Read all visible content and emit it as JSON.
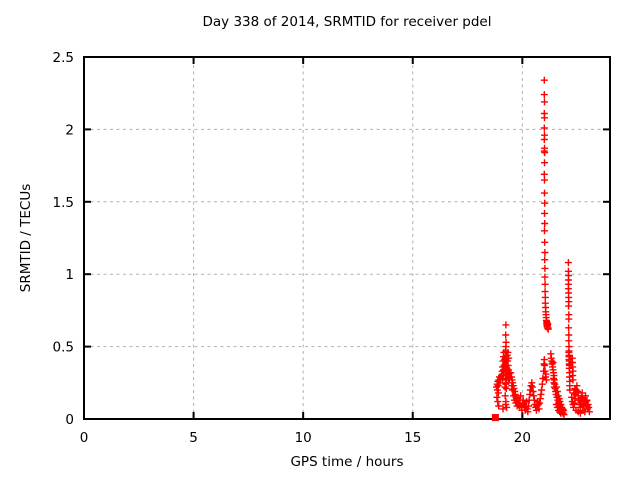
{
  "chart_data": {
    "type": "scatter",
    "title": "Day 338 of 2014, SRMTID for receiver pdel",
    "xlabel": "GPS time / hours",
    "ylabel": "SRMTID / TECUs",
    "xlim": [
      0,
      24
    ],
    "ylim": [
      0,
      2.5
    ],
    "xticks": [
      0,
      5,
      10,
      15,
      20
    ],
    "xtick_labels": [
      "0",
      "5",
      "10",
      "15",
      "20"
    ],
    "yticks": [
      0,
      0.5,
      1,
      1.5,
      2,
      2.5
    ],
    "ytick_labels": [
      "0",
      "0.5",
      "1",
      "1.5",
      "2",
      "2.5"
    ],
    "grid": true,
    "legend": "none",
    "marker": "plus",
    "marker_color": "#ff0000",
    "grid_color": "#b0b0b0",
    "border_color": "#000000",
    "background_color": "#ffffff",
    "square_point": [
      18.77,
      0.01
    ],
    "series": [
      {
        "name": "SRMTID",
        "color": "#ff0000",
        "points": [
          [
            18.82,
            0.22
          ],
          [
            18.85,
            0.24
          ],
          [
            18.88,
            0.26
          ],
          [
            18.9,
            0.23
          ],
          [
            18.93,
            0.27
          ],
          [
            18.96,
            0.29
          ],
          [
            18.98,
            0.25
          ],
          [
            18.86,
            0.2
          ],
          [
            18.91,
            0.18
          ],
          [
            18.84,
            0.15
          ],
          [
            18.88,
            0.12
          ],
          [
            18.92,
            0.09
          ],
          [
            19.12,
            0.07
          ],
          [
            19.25,
            0.65
          ],
          [
            19.24,
            0.58
          ],
          [
            19.26,
            0.53
          ],
          [
            19.25,
            0.5
          ],
          [
            19.24,
            0.47
          ],
          [
            19.26,
            0.44
          ],
          [
            19.23,
            0.42
          ],
          [
            19.27,
            0.4
          ],
          [
            19.22,
            0.38
          ],
          [
            19.26,
            0.36
          ],
          [
            19.24,
            0.34
          ],
          [
            19.28,
            0.33
          ],
          [
            19.22,
            0.31
          ],
          [
            19.25,
            0.3
          ],
          [
            19.27,
            0.28
          ],
          [
            19.23,
            0.27
          ],
          [
            19.26,
            0.25
          ],
          [
            19.24,
            0.24
          ],
          [
            19.21,
            0.22
          ],
          [
            19.27,
            0.21
          ],
          [
            19.05,
            0.3
          ],
          [
            19.08,
            0.33
          ],
          [
            19.1,
            0.36
          ],
          [
            19.12,
            0.4
          ],
          [
            19.14,
            0.43
          ],
          [
            19.16,
            0.46
          ],
          [
            19.1,
            0.28
          ],
          [
            19.13,
            0.31
          ],
          [
            19.15,
            0.34
          ],
          [
            19.17,
            0.37
          ],
          [
            19.19,
            0.41
          ],
          [
            19.31,
            0.44
          ],
          [
            19.33,
            0.4
          ],
          [
            19.35,
            0.37
          ],
          [
            19.37,
            0.34
          ],
          [
            19.39,
            0.31
          ],
          [
            19.41,
            0.28
          ],
          [
            19.34,
            0.46
          ],
          [
            19.3,
            0.35
          ],
          [
            19.36,
            0.27
          ],
          [
            19.32,
            0.3
          ],
          [
            19.38,
            0.42
          ],
          [
            19.22,
            0.16
          ],
          [
            19.25,
            0.12
          ],
          [
            19.28,
            0.08
          ],
          [
            19.24,
            0.1
          ],
          [
            19.47,
            0.32
          ],
          [
            19.5,
            0.29
          ],
          [
            19.53,
            0.27
          ],
          [
            19.56,
            0.25
          ],
          [
            19.59,
            0.23
          ],
          [
            19.62,
            0.21
          ],
          [
            19.65,
            0.19
          ],
          [
            19.68,
            0.17
          ],
          [
            19.71,
            0.15
          ],
          [
            19.74,
            0.14
          ],
          [
            19.77,
            0.12
          ],
          [
            19.8,
            0.11
          ],
          [
            19.83,
            0.1
          ],
          [
            19.86,
            0.09
          ],
          [
            19.55,
            0.2
          ],
          [
            19.6,
            0.16
          ],
          [
            19.64,
            0.13
          ],
          [
            19.7,
            0.11
          ],
          [
            19.76,
            0.09
          ],
          [
            19.89,
            0.13
          ],
          [
            19.92,
            0.16
          ],
          [
            19.52,
            0.23
          ],
          [
            19.95,
            0.08
          ],
          [
            19.98,
            0.06
          ],
          [
            20.01,
            0.1
          ],
          [
            20.04,
            0.13
          ],
          [
            20.07,
            0.11
          ],
          [
            20.1,
            0.08
          ],
          [
            20.13,
            0.06
          ],
          [
            20.16,
            0.09
          ],
          [
            20.19,
            0.12
          ],
          [
            20.22,
            0.07
          ],
          [
            20.25,
            0.05
          ],
          [
            20.28,
            0.09
          ],
          [
            20.31,
            0.13
          ],
          [
            20.34,
            0.17
          ],
          [
            20.37,
            0.2
          ],
          [
            20.4,
            0.23
          ],
          [
            20.43,
            0.25
          ],
          [
            20.46,
            0.22
          ],
          [
            20.49,
            0.19
          ],
          [
            20.52,
            0.16
          ],
          [
            20.55,
            0.13
          ],
          [
            20.58,
            0.1
          ],
          [
            20.61,
            0.08
          ],
          [
            20.64,
            0.06
          ],
          [
            20.67,
            0.09
          ],
          [
            20.7,
            0.12
          ],
          [
            20.73,
            0.1
          ],
          [
            20.76,
            0.07
          ],
          [
            20.79,
            0.11
          ],
          [
            20.82,
            0.14
          ],
          [
            20.85,
            0.17
          ],
          [
            20.88,
            0.2
          ],
          [
            20.91,
            0.24
          ],
          [
            20.94,
            0.28
          ],
          [
            20.97,
            0.33
          ],
          [
            20.99,
            0.38
          ],
          [
            21.0,
            0.41
          ],
          [
            21.02,
            0.37
          ],
          [
            21.04,
            0.33
          ],
          [
            21.06,
            0.29
          ],
          [
            21.08,
            0.31
          ],
          [
            21.1,
            0.27
          ],
          [
            21.0,
            2.34
          ],
          [
            21.0,
            2.24
          ],
          [
            21.01,
            2.19
          ],
          [
            21.0,
            2.11
          ],
          [
            21.01,
            2.08
          ],
          [
            21.0,
            2.01
          ],
          [
            21.01,
            1.96
          ],
          [
            21.0,
            1.93
          ],
          [
            21.01,
            1.87
          ],
          [
            21.0,
            1.85
          ],
          [
            21.02,
            1.84
          ],
          [
            21.01,
            1.77
          ],
          [
            21.0,
            1.69
          ],
          [
            21.01,
            1.65
          ],
          [
            21.01,
            1.56
          ],
          [
            21.02,
            1.49
          ],
          [
            21.01,
            1.42
          ],
          [
            21.02,
            1.35
          ],
          [
            21.01,
            1.3
          ],
          [
            21.02,
            1.22
          ],
          [
            21.03,
            1.15
          ],
          [
            21.02,
            1.1
          ],
          [
            21.03,
            1.04
          ],
          [
            21.03,
            0.98
          ],
          [
            21.04,
            0.93
          ],
          [
            21.04,
            0.88
          ],
          [
            21.05,
            0.84
          ],
          [
            21.05,
            0.8
          ],
          [
            21.06,
            0.77
          ],
          [
            21.07,
            0.74
          ],
          [
            21.08,
            0.72
          ],
          [
            21.09,
            0.7
          ],
          [
            21.1,
            0.68
          ],
          [
            21.11,
            0.66
          ],
          [
            21.12,
            0.65
          ],
          [
            21.13,
            0.64
          ],
          [
            21.14,
            0.63
          ],
          [
            21.15,
            0.645
          ],
          [
            21.16,
            0.655
          ],
          [
            21.17,
            0.63
          ],
          [
            21.18,
            0.62
          ],
          [
            21.12,
            0.67
          ],
          [
            21.14,
            0.66
          ],
          [
            21.3,
            0.45
          ],
          [
            21.32,
            0.42
          ],
          [
            21.34,
            0.4
          ],
          [
            21.36,
            0.38
          ],
          [
            21.38,
            0.36
          ],
          [
            21.4,
            0.39
          ],
          [
            21.4,
            0.34
          ],
          [
            21.42,
            0.32
          ],
          [
            21.42,
            0.28
          ],
          [
            21.44,
            0.3
          ],
          [
            21.44,
            0.25
          ],
          [
            21.46,
            0.27
          ],
          [
            21.46,
            0.22
          ],
          [
            21.48,
            0.24
          ],
          [
            21.5,
            0.21
          ],
          [
            21.52,
            0.19
          ],
          [
            21.54,
            0.17
          ],
          [
            21.56,
            0.22
          ],
          [
            21.58,
            0.15
          ],
          [
            21.6,
            0.19
          ],
          [
            21.62,
            0.13
          ],
          [
            21.64,
            0.16
          ],
          [
            21.66,
            0.11
          ],
          [
            21.68,
            0.14
          ],
          [
            21.7,
            0.09
          ],
          [
            21.72,
            0.12
          ],
          [
            21.74,
            0.07
          ],
          [
            21.76,
            0.1
          ],
          [
            21.78,
            0.06
          ],
          [
            21.8,
            0.08
          ],
          [
            21.82,
            0.05
          ],
          [
            21.84,
            0.07
          ],
          [
            21.86,
            0.04
          ],
          [
            21.88,
            0.06
          ],
          [
            21.9,
            0.03
          ],
          [
            21.55,
            0.1
          ],
          [
            21.6,
            0.08
          ],
          [
            21.65,
            0.06
          ],
          [
            21.7,
            0.05
          ],
          [
            21.75,
            0.04
          ],
          [
            22.1,
            1.08
          ],
          [
            22.1,
            1.02
          ],
          [
            22.11,
            0.99
          ],
          [
            22.1,
            0.96
          ],
          [
            22.11,
            0.93
          ],
          [
            22.1,
            0.9
          ],
          [
            22.11,
            0.87
          ],
          [
            22.11,
            0.84
          ],
          [
            22.12,
            0.81
          ],
          [
            22.11,
            0.78
          ],
          [
            22.12,
            0.72
          ],
          [
            22.12,
            0.69
          ],
          [
            22.11,
            0.63
          ],
          [
            22.12,
            0.58
          ],
          [
            22.12,
            0.54
          ],
          [
            22.13,
            0.5
          ],
          [
            22.13,
            0.47
          ],
          [
            22.14,
            0.44
          ],
          [
            22.13,
            0.41
          ],
          [
            22.14,
            0.38
          ],
          [
            22.12,
            0.46
          ],
          [
            22.13,
            0.43
          ],
          [
            22.14,
            0.4
          ],
          [
            22.15,
            0.37
          ],
          [
            22.14,
            0.35
          ],
          [
            22.15,
            0.32
          ],
          [
            22.15,
            0.29
          ],
          [
            22.16,
            0.26
          ],
          [
            22.16,
            0.23
          ],
          [
            22.17,
            0.2
          ],
          [
            22.28,
            0.42
          ],
          [
            22.29,
            0.39
          ],
          [
            22.3,
            0.36
          ],
          [
            22.31,
            0.33
          ],
          [
            22.3,
            0.3
          ],
          [
            22.31,
            0.27
          ],
          [
            22.25,
            0.15
          ],
          [
            22.28,
            0.12
          ],
          [
            22.31,
            0.1
          ],
          [
            22.34,
            0.08
          ],
          [
            22.37,
            0.11
          ],
          [
            22.4,
            0.14
          ],
          [
            22.43,
            0.17
          ],
          [
            22.46,
            0.2
          ],
          [
            22.49,
            0.23
          ],
          [
            22.52,
            0.19
          ],
          [
            22.55,
            0.16
          ],
          [
            22.58,
            0.13
          ],
          [
            22.61,
            0.1
          ],
          [
            22.64,
            0.08
          ],
          [
            22.67,
            0.12
          ],
          [
            22.7,
            0.15
          ],
          [
            22.73,
            0.18
          ],
          [
            22.76,
            0.14
          ],
          [
            22.79,
            0.11
          ],
          [
            22.82,
            0.09
          ],
          [
            22.85,
            0.13
          ],
          [
            22.88,
            0.16
          ],
          [
            22.91,
            0.12
          ],
          [
            22.94,
            0.09
          ],
          [
            22.97,
            0.07
          ],
          [
            23.0,
            0.1
          ],
          [
            23.03,
            0.08
          ],
          [
            23.06,
            0.05
          ],
          [
            22.45,
            0.06
          ],
          [
            22.55,
            0.05
          ],
          [
            22.65,
            0.04
          ],
          [
            22.75,
            0.06
          ],
          [
            22.85,
            0.05
          ],
          [
            22.95,
            0.13
          ],
          [
            22.35,
            0.18
          ],
          [
            22.4,
            0.21
          ]
        ]
      }
    ]
  }
}
